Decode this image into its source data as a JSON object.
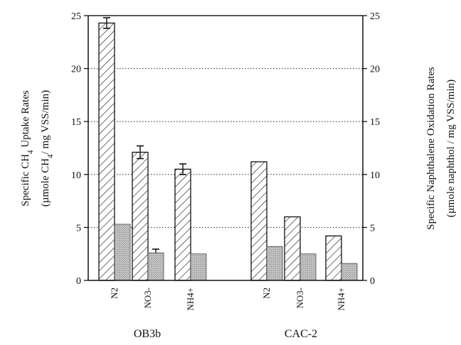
{
  "chart_data": {
    "type": "bar",
    "left_axis": {
      "label_line1_a": "Specific CH",
      "label_line1_sub": "4",
      "label_line1_b": " Uptake Rates",
      "label_line2_a": "(µmole CH",
      "label_line2_sub": "4",
      "label_line2_b": "/ mg VSS/min)"
    },
    "right_axis": {
      "label_line1": "Specific Naphthalene Oxidation Rates",
      "label_line2": "(µmole naphthol / mg VSS/min)"
    },
    "ylim": [
      0,
      25
    ],
    "yticks": [
      0,
      5,
      10,
      15,
      20,
      25
    ],
    "grid": "dotted horizontal at 5, 10, 15, 20, 25",
    "groups": [
      {
        "name": "OB3b",
        "categories": [
          "N2",
          "NO3-",
          "NH4+"
        ],
        "ch4_uptake": [
          24.3,
          12.1,
          10.5
        ],
        "ch4_error": [
          0.5,
          0.6,
          0.5
        ],
        "naphthalene_oxidation": [
          5.3,
          2.6,
          2.5
        ],
        "naphthalene_error": [
          0,
          0.35,
          0
        ]
      },
      {
        "name": "CAC-2",
        "categories": [
          "N2",
          "NO3-",
          "NH4+"
        ],
        "ch4_uptake": [
          11.2,
          6.0,
          4.2
        ],
        "ch4_error": [
          0,
          0,
          0
        ],
        "naphthalene_oxidation": [
          3.2,
          2.5,
          1.6
        ],
        "naphthalene_error": [
          0,
          0,
          0
        ]
      }
    ],
    "colors": {
      "ch4_fill": "#ffffff",
      "ch4_hatch": "#222222",
      "naphthalene_fill": "#bdbdbd",
      "axis": "#111111",
      "grid": "#222222"
    }
  }
}
